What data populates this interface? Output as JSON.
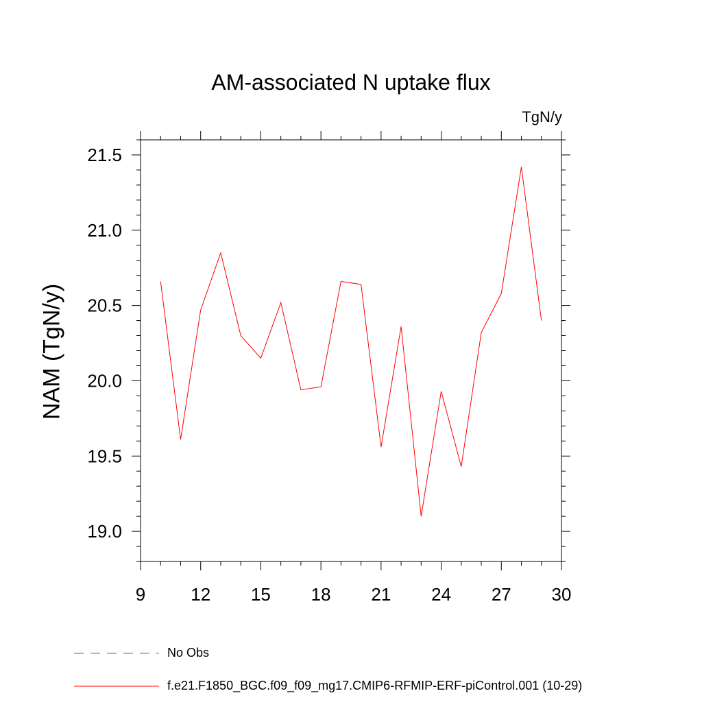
{
  "chart_data": {
    "type": "line",
    "title": "AM-associated N uptake flux",
    "units_label": "TgN/y",
    "ylabel": "NAM  (TgN/y)",
    "xlabel": "",
    "xlim": [
      9,
      30
    ],
    "ylim": [
      18.8,
      21.6
    ],
    "x_ticks": [
      9,
      12,
      15,
      18,
      21,
      24,
      27,
      30
    ],
    "y_ticks": [
      "19.0",
      "19.5",
      "20.0",
      "20.5",
      "21.0",
      "21.5"
    ],
    "series": [
      {
        "name": "f.e21.F1850_BGC.f09_f09_mg17.CMIP6-RFMIP-ERF-piControl.001 (10-29)",
        "color": "#ff0000",
        "style": "solid",
        "x": [
          10,
          11,
          12,
          13,
          14,
          15,
          16,
          17,
          18,
          19,
          20,
          21,
          22,
          23,
          24,
          25,
          26,
          27,
          28,
          29
        ],
        "values": [
          20.66,
          19.61,
          20.47,
          20.85,
          20.3,
          20.15,
          20.52,
          19.94,
          19.96,
          20.66,
          20.64,
          19.56,
          20.36,
          19.1,
          19.93,
          19.43,
          20.32,
          20.58,
          21.42,
          20.4
        ]
      }
    ],
    "legend": [
      {
        "label": "No Obs",
        "color": "#6a5acd",
        "style": "dashed"
      },
      {
        "label": "f.e21.F1850_BGC.f09_f09_mg17.CMIP6-RFMIP-ERF-piControl.001 (10-29)",
        "color": "#ff0000",
        "style": "solid"
      }
    ],
    "legend_position": "bottom-left"
  }
}
